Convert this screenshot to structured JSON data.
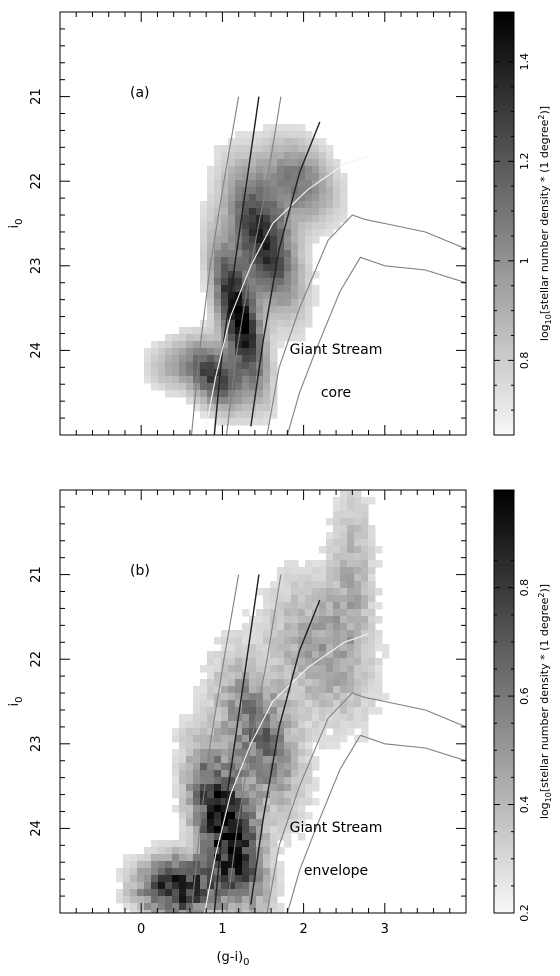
{
  "chart_data": [
    {
      "type": "heatmap",
      "panel_label": "(a)",
      "ylabel_main": "i",
      "ylabel_sub": "0",
      "xlabel": "",
      "xlim": [
        -1,
        4
      ],
      "ylim": [
        25,
        20
      ],
      "x_ticks": [],
      "y_ticks": [
        "21",
        "22",
        "23",
        "24"
      ],
      "y_tick_values": [
        21,
        22,
        23,
        24
      ],
      "annotation_lines": [
        "Giant Stream",
        "core"
      ],
      "colorbar": {
        "label": "log10[stellar number density * (1 degree^2)]",
        "label_prefix": "log",
        "label_sub": "10",
        "label_middle": "[stellar number density * (1 degree",
        "label_sup": "2",
        "label_suffix": ")]",
        "min": 0.65,
        "max": 1.5,
        "ticks": [
          "0.8",
          "1",
          "1.2",
          "1.4"
        ],
        "tick_values": [
          0.8,
          1.0,
          1.2,
          1.4
        ]
      },
      "density_blobs": [
        {
          "x": 1.2,
          "y": 23.6,
          "sx": 0.22,
          "sy": 0.55,
          "rho": 0.68,
          "amp": 1.0
        },
        {
          "x": 1.5,
          "y": 22.7,
          "sx": 0.3,
          "sy": 0.55,
          "rho": 0.55,
          "amp": 0.85
        },
        {
          "x": 1.95,
          "y": 22.0,
          "sx": 0.32,
          "sy": 0.35,
          "rho": 0.3,
          "amp": 0.5
        },
        {
          "x": 0.9,
          "y": 24.3,
          "sx": 0.25,
          "sy": 0.28,
          "rho": 0.4,
          "amp": 0.75
        },
        {
          "x": 0.35,
          "y": 24.2,
          "sx": 0.22,
          "sy": 0.2,
          "rho": 0.0,
          "amp": 0.25
        }
      ],
      "series": [
        {
          "role": "isochrone-dark",
          "color": "#202020",
          "x": [
            0.9,
            1.0,
            1.15,
            1.3,
            1.45
          ],
          "y": [
            25.0,
            24.0,
            23.0,
            22.0,
            21.0
          ]
        },
        {
          "role": "isochrone-grey-left",
          "color": "#808080",
          "x": [
            0.62,
            0.72,
            0.85,
            1.02,
            1.2
          ],
          "y": [
            25.0,
            24.0,
            23.0,
            22.0,
            21.0
          ]
        },
        {
          "role": "isochrone-grey-mid",
          "color": "#808080",
          "x": [
            1.05,
            1.18,
            1.35,
            1.55,
            1.72
          ],
          "y": [
            25.0,
            24.0,
            23.0,
            22.0,
            21.0
          ]
        },
        {
          "role": "isochrone-white",
          "color": "#f4f4f4",
          "x": [
            0.78,
            0.92,
            1.1,
            1.35,
            1.62,
            2.05,
            2.5,
            2.8
          ],
          "y": [
            25.0,
            24.3,
            23.6,
            23.0,
            22.5,
            22.1,
            21.8,
            21.7
          ]
        },
        {
          "role": "isochrone-dark-right",
          "color": "#202020",
          "x": [
            1.35,
            1.5,
            1.7,
            1.95,
            2.2
          ],
          "y": [
            24.9,
            23.9,
            22.8,
            21.9,
            21.3
          ]
        },
        {
          "role": "isochrone-grey-right",
          "color": "#808080",
          "x": [
            1.55,
            1.7,
            1.95,
            2.3,
            2.6,
            2.75,
            3.0,
            3.5,
            4.0
          ],
          "y": [
            25.0,
            24.2,
            23.5,
            22.7,
            22.4,
            22.45,
            22.5,
            22.6,
            22.8
          ]
        },
        {
          "role": "isochrone-grey-far",
          "color": "#808080",
          "x": [
            1.8,
            1.95,
            2.15,
            2.45,
            2.7,
            3.0,
            3.5,
            4.0
          ],
          "y": [
            25.0,
            24.5,
            24.0,
            23.3,
            22.9,
            23.0,
            23.05,
            23.2
          ]
        }
      ]
    },
    {
      "type": "heatmap",
      "panel_label": "(b)",
      "ylabel_main": "i",
      "ylabel_sub": "0",
      "xlabel": "(g-i)0",
      "xlabel_main": "(g-i)",
      "xlabel_sub": "0",
      "xlim": [
        -1,
        4
      ],
      "ylim": [
        25,
        20
      ],
      "x_ticks": [
        "0",
        "1",
        "2",
        "3"
      ],
      "x_tick_values": [
        0,
        1,
        2,
        3
      ],
      "y_ticks": [
        "21",
        "22",
        "23",
        "24"
      ],
      "y_tick_values": [
        21,
        22,
        23,
        24
      ],
      "annotation_lines": [
        "Giant Stream",
        "envelope"
      ],
      "colorbar": {
        "label": "log10[stellar number density * (1 degree^2)]",
        "label_prefix": "log",
        "label_sub": "10",
        "label_middle": "[stellar number density * (1 degree",
        "label_sup": "2",
        "label_suffix": ")]",
        "min": 0.2,
        "max": 0.98,
        "ticks": [
          "0.2",
          "0.4",
          "0.6",
          "0.8"
        ],
        "tick_values": [
          0.2,
          0.4,
          0.6,
          0.8
        ]
      },
      "density_blobs": [
        {
          "x": 1.05,
          "y": 24.0,
          "sx": 0.3,
          "sy": 0.6,
          "rho": 0.55,
          "amp": 1.0
        },
        {
          "x": 0.45,
          "y": 24.7,
          "sx": 0.35,
          "sy": 0.25,
          "rho": 0.0,
          "amp": 0.9
        },
        {
          "x": 1.45,
          "y": 22.9,
          "sx": 0.35,
          "sy": 0.6,
          "rho": 0.5,
          "amp": 0.55
        },
        {
          "x": 2.2,
          "y": 21.9,
          "sx": 0.45,
          "sy": 0.6,
          "rho": 0.3,
          "amp": 0.35
        },
        {
          "x": 2.6,
          "y": 20.9,
          "sx": 0.2,
          "sy": 0.7,
          "rho": 0.0,
          "amp": 0.25
        }
      ],
      "series": [
        {
          "role": "isochrone-dark",
          "color": "#202020",
          "x": [
            0.9,
            1.0,
            1.15,
            1.3,
            1.45
          ],
          "y": [
            25.0,
            24.0,
            23.0,
            22.0,
            21.0
          ]
        },
        {
          "role": "isochrone-grey-left",
          "color": "#808080",
          "x": [
            0.62,
            0.72,
            0.85,
            1.02,
            1.2
          ],
          "y": [
            25.0,
            24.0,
            23.0,
            22.0,
            21.0
          ]
        },
        {
          "role": "isochrone-grey-mid",
          "color": "#808080",
          "x": [
            1.05,
            1.18,
            1.35,
            1.55,
            1.72
          ],
          "y": [
            25.0,
            24.0,
            23.0,
            22.0,
            21.0
          ]
        },
        {
          "role": "isochrone-white",
          "color": "#f4f4f4",
          "x": [
            0.78,
            0.92,
            1.1,
            1.35,
            1.62,
            2.05,
            2.5,
            2.8
          ],
          "y": [
            25.0,
            24.3,
            23.6,
            23.0,
            22.5,
            22.1,
            21.8,
            21.7
          ]
        },
        {
          "role": "isochrone-dark-right",
          "color": "#202020",
          "x": [
            1.35,
            1.5,
            1.7,
            1.95,
            2.2
          ],
          "y": [
            24.9,
            23.9,
            22.8,
            21.9,
            21.3
          ]
        },
        {
          "role": "isochrone-grey-right",
          "color": "#808080",
          "x": [
            1.55,
            1.7,
            1.95,
            2.3,
            2.6,
            2.75,
            3.0,
            3.5,
            4.0
          ],
          "y": [
            25.0,
            24.2,
            23.5,
            22.7,
            22.4,
            22.45,
            22.5,
            22.6,
            22.8
          ]
        },
        {
          "role": "isochrone-grey-far",
          "color": "#808080",
          "x": [
            1.8,
            1.95,
            2.15,
            2.45,
            2.7,
            3.0,
            3.5,
            4.0
          ],
          "y": [
            25.0,
            24.5,
            24.0,
            23.3,
            22.9,
            23.0,
            23.05,
            23.2
          ]
        }
      ]
    }
  ]
}
